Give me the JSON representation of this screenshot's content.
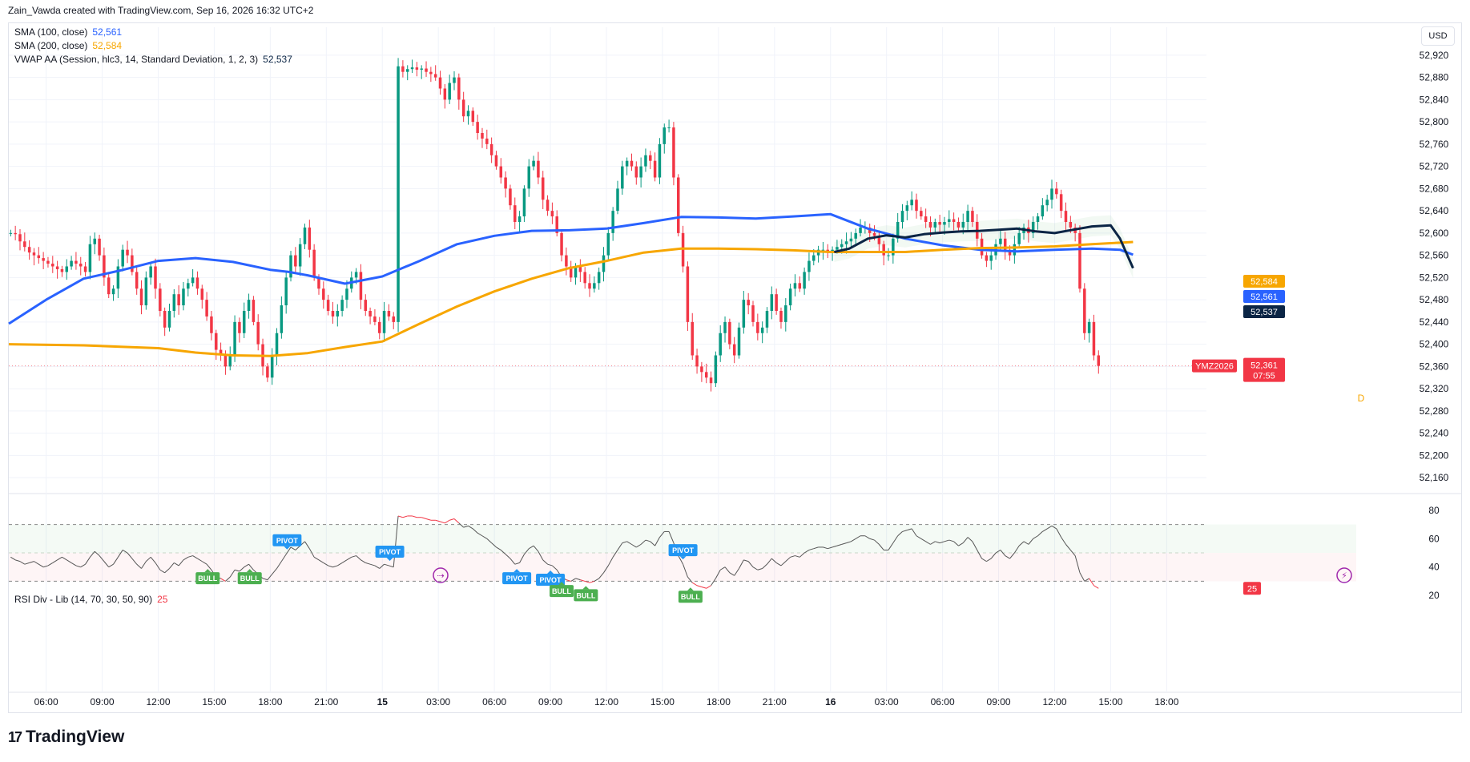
{
  "header": {
    "text": "Zain_Vawda created with TradingView.com, Sep 16, 2026 16:32 UTC+2"
  },
  "currency": "USD",
  "legend": [
    {
      "label": "SMA (100, close)",
      "value": "52,561",
      "color": "#2962ff"
    },
    {
      "label": "SMA (200, close)",
      "value": "52,584",
      "color": "#f7a600"
    },
    {
      "label": "VWAP AA (Session, hlc3, 14, Standard Deviation, 1, 2, 3)",
      "value": "52,537",
      "color": "#0b2545"
    }
  ],
  "rsi_legend": {
    "label": "RSI Div - Lib (14, 70, 30, 50, 90)",
    "value": "25"
  },
  "logo": {
    "text": "TradingView"
  },
  "symbol": {
    "ticker": "YMZ2026",
    "last_price": "52,361",
    "countdown": "07:55"
  },
  "indicator_marker": "D",
  "chart_data": [
    {
      "type": "candlestick",
      "y_ticks": [
        52920,
        52880,
        52840,
        52800,
        52760,
        52720,
        52680,
        52640,
        52600,
        52560,
        52520,
        52480,
        52440,
        52400,
        52360,
        52320,
        52280,
        52240,
        52200,
        52160
      ],
      "ylim": [
        52140,
        52940
      ],
      "x_ticks": [
        "06:00",
        "09:00",
        "12:00",
        "15:00",
        "18:00",
        "21:00",
        "15",
        "03:00",
        "06:00",
        "09:00",
        "12:00",
        "15:00",
        "18:00",
        "21:00",
        "16",
        "03:00",
        "06:00",
        "09:00",
        "12:00",
        "15:00",
        "18:00"
      ],
      "x_tick_times": [
        6,
        9,
        12,
        15,
        18,
        21,
        24,
        27,
        30,
        33,
        36,
        39,
        42,
        45,
        48,
        51,
        54,
        57,
        60,
        63,
        66
      ],
      "xlim": [
        4,
        68
      ],
      "price_labels": [
        {
          "value": "52,584",
          "color": "#f7a600"
        },
        {
          "value": "52,561",
          "color": "#2962ff"
        },
        {
          "value": "52,537",
          "color": "#0b2545"
        }
      ],
      "candles_t0": 4.1,
      "candle_step": 0.25,
      "candles_open0": 52600,
      "closes": [
        52600,
        52598,
        52585,
        52575,
        52565,
        52560,
        52555,
        52550,
        52545,
        52540,
        52535,
        52530,
        52540,
        52550,
        52545,
        52540,
        52530,
        52580,
        52590,
        52560,
        52520,
        52490,
        52500,
        52540,
        52570,
        52560,
        52530,
        52500,
        52470,
        52520,
        52540,
        52500,
        52460,
        52430,
        52460,
        52490,
        52470,
        52500,
        52510,
        52520,
        52500,
        52480,
        52450,
        52420,
        52390,
        52380,
        52360,
        52380,
        52440,
        52420,
        52460,
        52480,
        52440,
        52400,
        52360,
        52340,
        52380,
        52420,
        52470,
        52520,
        52560,
        52540,
        52580,
        52610,
        52570,
        52520,
        52500,
        52480,
        52460,
        52450,
        52460,
        52480,
        52500,
        52520,
        52530,
        52480,
        52460,
        52450,
        52440,
        52420,
        52460,
        52450,
        52440,
        52900,
        52890,
        52895,
        52898,
        52894,
        52896,
        52890,
        52886,
        52880,
        52860,
        52840,
        52870,
        52880,
        52840,
        52810,
        52820,
        52800,
        52780,
        52770,
        52760,
        52740,
        52720,
        52700,
        52680,
        52650,
        52620,
        52630,
        52680,
        52720,
        52730,
        52700,
        52660,
        52640,
        52630,
        52600,
        52560,
        52540,
        52520,
        52540,
        52530,
        52510,
        52500,
        52510,
        52530,
        52560,
        52600,
        52640,
        52680,
        52720,
        52730,
        52720,
        52700,
        52720,
        52740,
        52730,
        52700,
        52760,
        52790,
        52790,
        52700,
        52600,
        52540,
        52440,
        52380,
        52360,
        52350,
        52340,
        52330,
        52380,
        52420,
        52440,
        52400,
        52380,
        52430,
        52480,
        52470,
        52440,
        52420,
        52430,
        52460,
        52490,
        52460,
        52440,
        52470,
        52500,
        52510,
        52500,
        52530,
        52550,
        52560,
        52570,
        52570,
        52565,
        52570,
        52575,
        52580,
        52585,
        52590,
        52600,
        52610,
        52610,
        52600,
        52595,
        52580,
        52560,
        52560,
        52590,
        52620,
        52640,
        52650,
        52660,
        52640,
        52630,
        52620,
        52610,
        52620,
        52615,
        52620,
        52625,
        52620,
        52610,
        52620,
        52640,
        52620,
        52590,
        52560,
        52550,
        52560,
        52580,
        52590,
        52570,
        52560,
        52580,
        52600,
        52610,
        52600,
        52620,
        52630,
        52650,
        52660,
        52680,
        52670,
        52640,
        52620,
        52610,
        52600,
        52500,
        52420,
        52440,
        52380,
        52361
      ],
      "series": [
        {
          "name": "SMA (100, close)",
          "color": "#2962ff",
          "x": [
            4,
            6,
            8,
            10,
            12,
            14,
            16,
            18,
            19,
            20,
            22,
            24,
            26,
            28,
            30,
            32,
            34,
            36,
            38,
            40,
            42,
            44,
            46,
            48,
            50,
            52,
            54,
            56,
            58,
            60,
            62,
            63.5,
            64.2
          ],
          "y": [
            52437,
            52480,
            52518,
            52533,
            52550,
            52555,
            52548,
            52534,
            52530,
            52524,
            52509,
            52522,
            52550,
            52580,
            52595,
            52604,
            52605,
            52608,
            52618,
            52629,
            52628,
            52626,
            52630,
            52634,
            52608,
            52590,
            52578,
            52570,
            52567,
            52570,
            52572,
            52570,
            52561
          ]
        },
        {
          "name": "SMA (200, close)",
          "color": "#f7a600",
          "x": [
            4,
            8,
            12,
            14,
            16,
            18,
            20,
            22,
            24,
            26,
            28,
            30,
            32,
            34,
            36,
            38,
            40,
            42,
            44,
            46,
            48,
            50,
            52,
            54,
            56,
            58,
            60,
            62,
            64.2
          ],
          "y": [
            52400,
            52398,
            52393,
            52385,
            52380,
            52379,
            52384,
            52395,
            52405,
            52437,
            52468,
            52495,
            52518,
            52537,
            52550,
            52565,
            52572,
            52572,
            52571,
            52569,
            52566,
            52566,
            52566,
            52570,
            52573,
            52574,
            52576,
            52580,
            52584
          ]
        },
        {
          "name": "VWAP AA (Session, hlc3, 14, Standard Deviation, 1, 2, 3)",
          "color": "#0b2545",
          "x": [
            48.2,
            49,
            50,
            51,
            52,
            53,
            54,
            55,
            56,
            57,
            58,
            59,
            60,
            61,
            62,
            63,
            63.5,
            64.2
          ],
          "y": [
            52566,
            52572,
            52590,
            52596,
            52592,
            52598,
            52601,
            52603,
            52604,
            52606,
            52608,
            52603,
            52600,
            52606,
            52612,
            52614,
            52590,
            52537
          ]
        }
      ]
    },
    {
      "type": "line",
      "title": "RSI Div - Lib (14, 70, 30, 50, 90)",
      "ylim": [
        15,
        85
      ],
      "y_ticks": [
        80,
        60,
        40,
        20
      ],
      "bands": [
        70,
        50,
        30
      ],
      "last_value": "25",
      "t0": 4.1,
      "step": 0.25,
      "values": [
        47,
        45,
        44,
        42,
        43,
        44,
        42,
        40,
        41,
        43,
        45,
        47,
        45,
        43,
        41,
        40,
        42,
        47,
        51,
        48,
        44,
        40,
        42,
        47,
        52,
        50,
        46,
        42,
        39,
        44,
        47,
        43,
        38,
        36,
        39,
        43,
        41,
        45,
        47,
        48,
        46,
        44,
        42,
        38,
        33,
        32,
        30,
        33,
        38,
        37,
        40,
        42,
        38,
        35,
        32,
        31,
        35,
        39,
        44,
        49,
        54,
        52,
        55,
        58,
        53,
        47,
        45,
        43,
        41,
        40,
        41,
        43,
        45,
        47,
        48,
        45,
        43,
        42,
        41,
        39,
        42,
        41,
        40,
        76,
        75,
        76,
        76,
        75,
        75,
        74,
        73,
        73,
        72,
        71,
        73,
        74,
        71,
        68,
        69,
        67,
        64,
        62,
        60,
        57,
        54,
        52,
        49,
        46,
        42,
        43,
        49,
        53,
        55,
        51,
        45,
        42,
        41,
        38,
        33,
        31,
        30,
        32,
        31,
        30,
        29,
        30,
        32,
        36,
        41,
        47,
        52,
        57,
        58,
        56,
        54,
        56,
        59,
        58,
        55,
        61,
        65,
        65,
        57,
        48,
        42,
        33,
        29,
        27,
        26,
        25,
        27,
        32,
        38,
        40,
        36,
        34,
        39,
        45,
        44,
        40,
        38,
        39,
        42,
        46,
        43,
        41,
        44,
        47,
        48,
        47,
        50,
        52,
        53,
        54,
        54,
        53,
        54,
        55,
        56,
        57,
        58,
        60,
        62,
        62,
        60,
        59,
        56,
        52,
        52,
        57,
        62,
        65,
        66,
        67,
        62,
        60,
        58,
        56,
        58,
        57,
        58,
        59,
        58,
        55,
        57,
        61,
        58,
        52,
        46,
        44,
        46,
        50,
        52,
        48,
        46,
        50,
        55,
        58,
        56,
        60,
        62,
        65,
        67,
        69,
        67,
        61,
        56,
        52,
        48,
        36,
        30,
        32,
        27,
        25
      ],
      "annotations": [
        {
          "label": "BULL",
          "kind": "bull",
          "time": 14.65
        },
        {
          "label": "BULL",
          "kind": "bull",
          "time": 16.9
        },
        {
          "label": "PIVOT",
          "kind": "pivot",
          "time": 18.9
        },
        {
          "label": "PIVOT",
          "kind": "pivot",
          "time": 24.4
        },
        {
          "label": "PIVOT",
          "kind": "pivot",
          "time": 31.2
        },
        {
          "label": "PIVOT",
          "kind": "pivot",
          "time": 33.0
        },
        {
          "label": "BULL",
          "kind": "bull",
          "time": 33.6
        },
        {
          "label": "BULL",
          "kind": "bull",
          "time": 34.9
        },
        {
          "label": "PIVOT",
          "kind": "pivot",
          "time": 40.1
        },
        {
          "label": "BULL",
          "kind": "bull",
          "time": 40.5
        }
      ]
    }
  ],
  "colors": {
    "up": "#089981",
    "down": "#f23645",
    "grid": "#f0f3fa",
    "rsi_line": "#555555",
    "bull": "#4caf50",
    "pivot": "#2196f3",
    "event": "#9c27b0"
  }
}
